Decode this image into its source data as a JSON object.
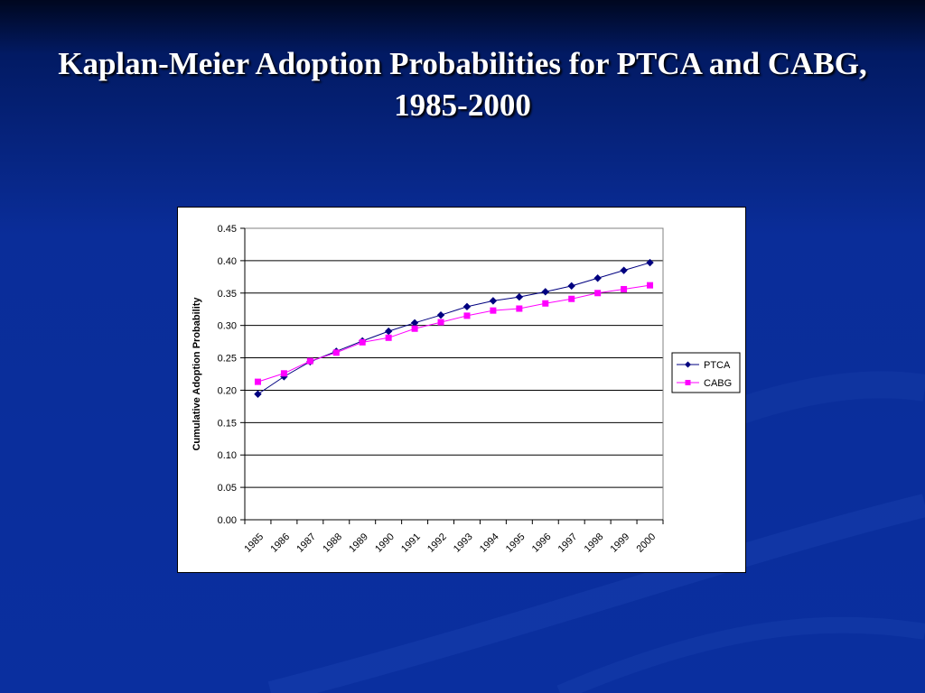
{
  "slide": {
    "title": "Kaplan-Meier Adoption Probabilities for PTCA and CABG, 1985-2000"
  },
  "colors": {
    "background": "#0a2f9f",
    "ptca": "#000080",
    "cabg": "#ff00ff"
  },
  "chart_data": {
    "type": "line",
    "title": "",
    "xlabel": "",
    "ylabel": "Cumulative Adoption Probability",
    "categories": [
      "1985",
      "1986",
      "1987",
      "1988",
      "1989",
      "1990",
      "1991",
      "1992",
      "1993",
      "1994",
      "1995",
      "1996",
      "1997",
      "1998",
      "1999",
      "2000"
    ],
    "ylim": [
      0,
      0.45
    ],
    "yticks": [
      "0.00",
      "0.05",
      "0.10",
      "0.15",
      "0.20",
      "0.25",
      "0.30",
      "0.35",
      "0.40",
      "0.45"
    ],
    "grid": true,
    "legend": "right",
    "series": [
      {
        "name": "PTCA",
        "marker": "diamond",
        "color": "#000080",
        "values": [
          0.194,
          0.221,
          0.244,
          0.26,
          0.276,
          0.291,
          0.304,
          0.316,
          0.329,
          0.338,
          0.344,
          0.352,
          0.361,
          0.373,
          0.385,
          0.397
        ]
      },
      {
        "name": "CABG",
        "marker": "square",
        "color": "#ff00ff",
        "values": [
          0.213,
          0.226,
          0.245,
          0.258,
          0.274,
          0.281,
          0.295,
          0.305,
          0.315,
          0.323,
          0.326,
          0.334,
          0.341,
          0.35,
          0.356,
          0.362
        ]
      }
    ]
  }
}
